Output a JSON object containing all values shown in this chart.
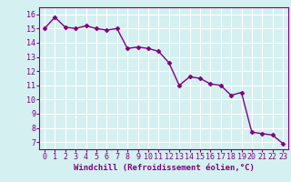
{
  "x": [
    0,
    1,
    2,
    3,
    4,
    5,
    6,
    7,
    8,
    9,
    10,
    11,
    12,
    13,
    14,
    15,
    16,
    17,
    18,
    19,
    20,
    21,
    22,
    23
  ],
  "y": [
    15.0,
    15.8,
    15.1,
    15.0,
    15.2,
    15.0,
    14.9,
    15.0,
    13.6,
    13.7,
    13.6,
    13.4,
    12.6,
    11.0,
    11.6,
    11.5,
    11.1,
    11.0,
    10.3,
    10.5,
    7.7,
    7.6,
    7.5,
    6.9
  ],
  "line_color": "#800080",
  "marker": "D",
  "marker_size": 2.5,
  "bg_color": "#d4f0f0",
  "grid_color": "#ffffff",
  "xlabel": "Windchill (Refroidissement éolien,°C)",
  "xlim": [
    -0.5,
    23.5
  ],
  "ylim": [
    6.5,
    16.5
  ],
  "yticks": [
    7,
    8,
    9,
    10,
    11,
    12,
    13,
    14,
    15,
    16
  ],
  "xlabel_fontsize": 6.5,
  "tick_fontsize": 6.0,
  "line_width": 1.0
}
